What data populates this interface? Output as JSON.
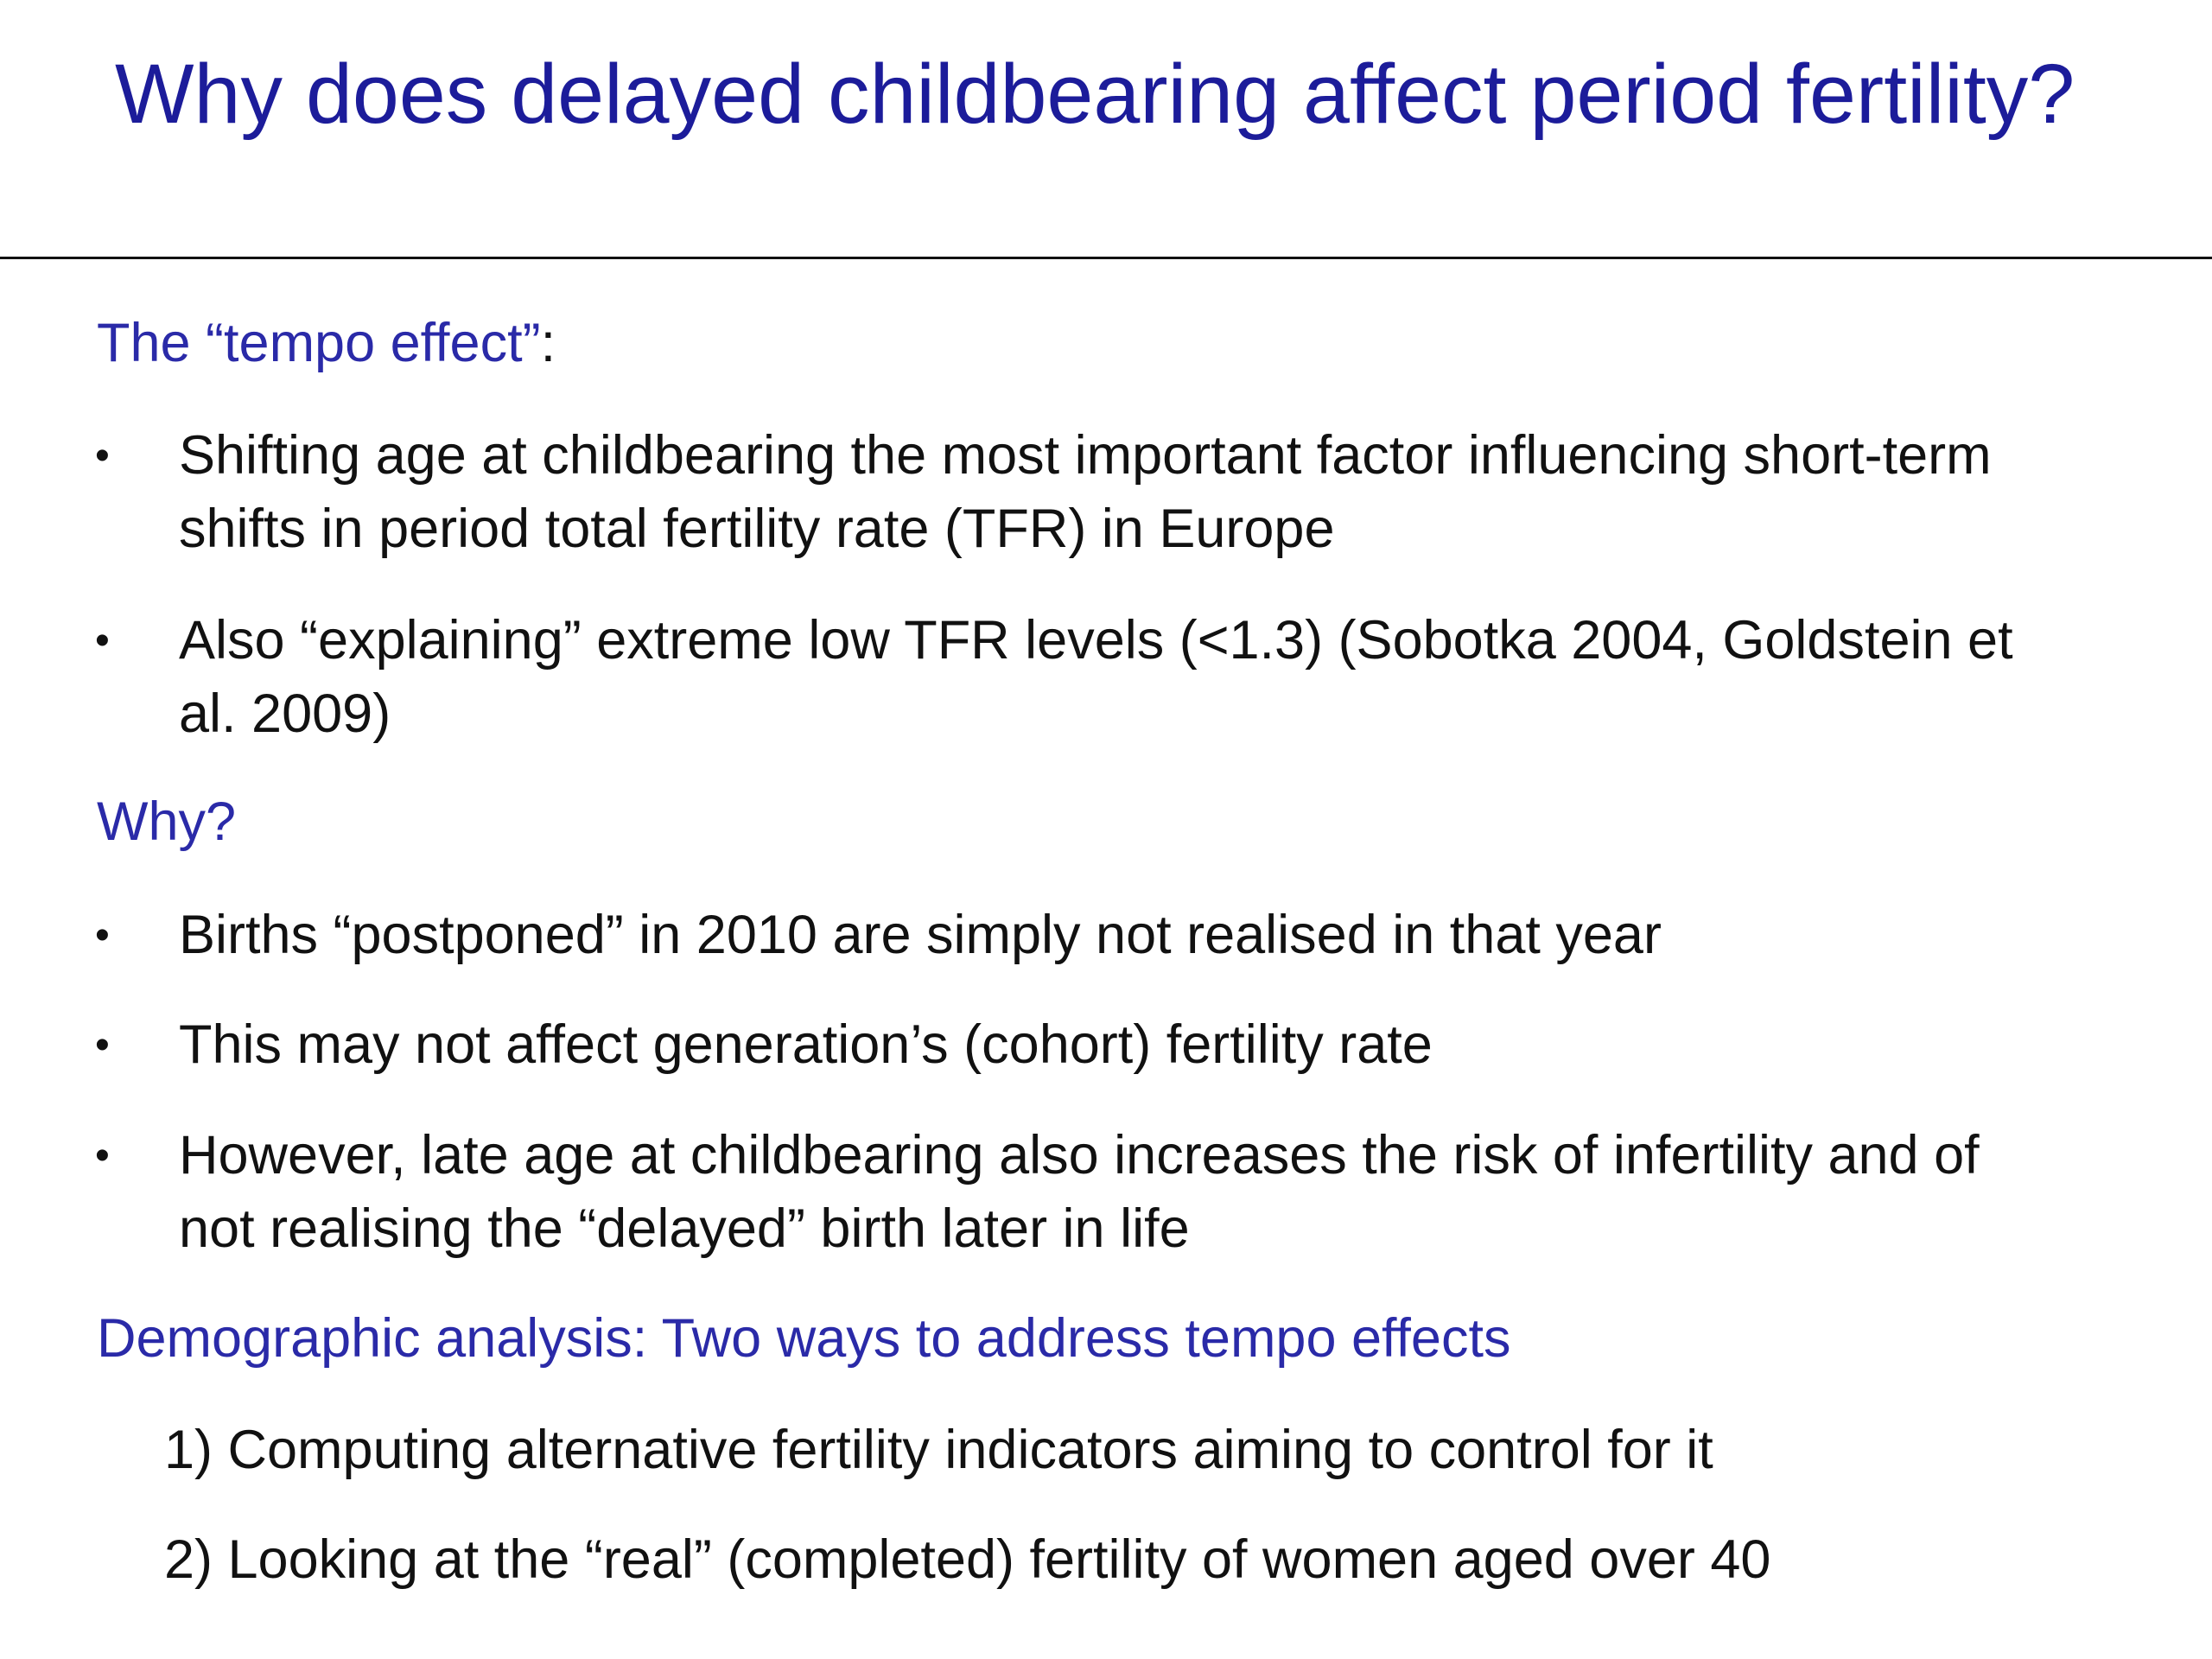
{
  "title": "Why does delayed childbearing affect period fertility?",
  "sections": [
    {
      "heading": "The “tempo effect”",
      "heading_suffix": ":",
      "bullets": [
        "Shifting age at childbearing the most important factor influencing short-term shifts in period total fertility rate (TFR) in Europe",
        "Also “explaining” extreme low TFR levels (<1.3) (Sobotka 2004, Goldstein et al. 2009)"
      ]
    },
    {
      "heading": "Why?",
      "bullets": [
        "Births “postponed” in 2010 are simply not realised in that year",
        "This may not affect generation’s (cohort) fertility rate",
        "However, late age at childbearing also increases the risk of infertility and of not realising the “delayed” birth later in life"
      ]
    },
    {
      "heading": "Demographic analysis: Two ways to address tempo effects",
      "items": [
        "1) Computing alternative fertility indicators aiming to control for it",
        "2) Looking at the “real” (completed) fertility of women aged over 40"
      ]
    }
  ],
  "bullet_symbol": "•",
  "colors": {
    "title": "#1c1c9a",
    "heading": "#2a2aa8",
    "body": "#111111"
  }
}
